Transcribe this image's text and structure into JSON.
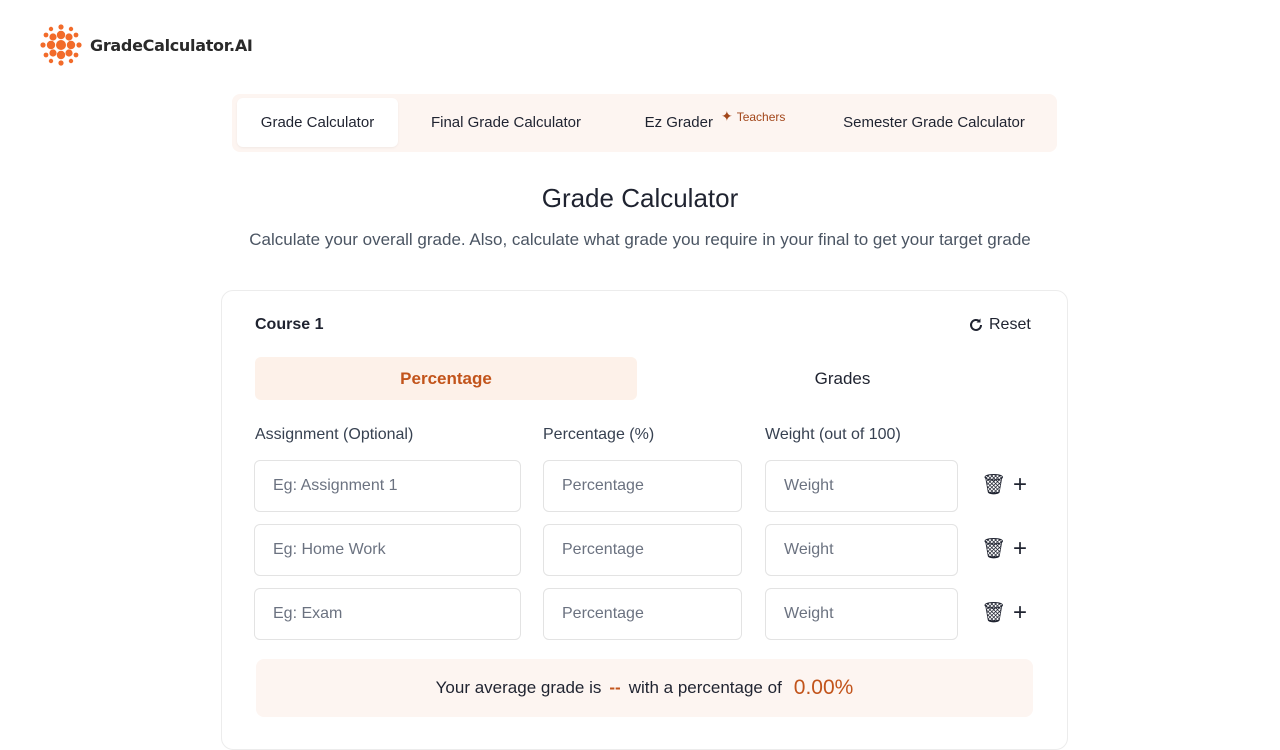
{
  "brand": {
    "name": "GradeCalculator.AI",
    "accent": "#c2541b",
    "logo_color": "#f26b2a"
  },
  "nav": {
    "tabs": [
      {
        "label": "Grade Calculator",
        "active": true
      },
      {
        "label": "Final Grade Calculator"
      },
      {
        "label": "Ez Grader",
        "badge": "Teachers",
        "badge_icon": "sparkle-icon"
      },
      {
        "label": "Semester Grade Calculator"
      }
    ]
  },
  "header": {
    "title": "Grade Calculator",
    "subtitle": "Calculate your overall grade. Also, calculate what grade you require in your final to get your target grade"
  },
  "course": {
    "name": "Course 1",
    "reset_label": "Reset",
    "modes": [
      "Percentage",
      "Grades"
    ],
    "active_mode": "Percentage",
    "columns": [
      "Assignment (Optional)",
      "Percentage (%)",
      "Weight (out of 100)"
    ],
    "rows": [
      {
        "assignment_placeholder": "Eg: Assignment 1",
        "percentage_placeholder": "Percentage",
        "weight_placeholder": "Weight"
      },
      {
        "assignment_placeholder": "Eg: Home Work",
        "percentage_placeholder": "Percentage",
        "weight_placeholder": "Weight"
      },
      {
        "assignment_placeholder": "Eg: Exam",
        "percentage_placeholder": "Percentage",
        "weight_placeholder": "Weight"
      }
    ]
  },
  "result": {
    "prefix": "Your average grade is",
    "grade": "--",
    "middle": "with a percentage of",
    "percentage": "0.00%"
  }
}
